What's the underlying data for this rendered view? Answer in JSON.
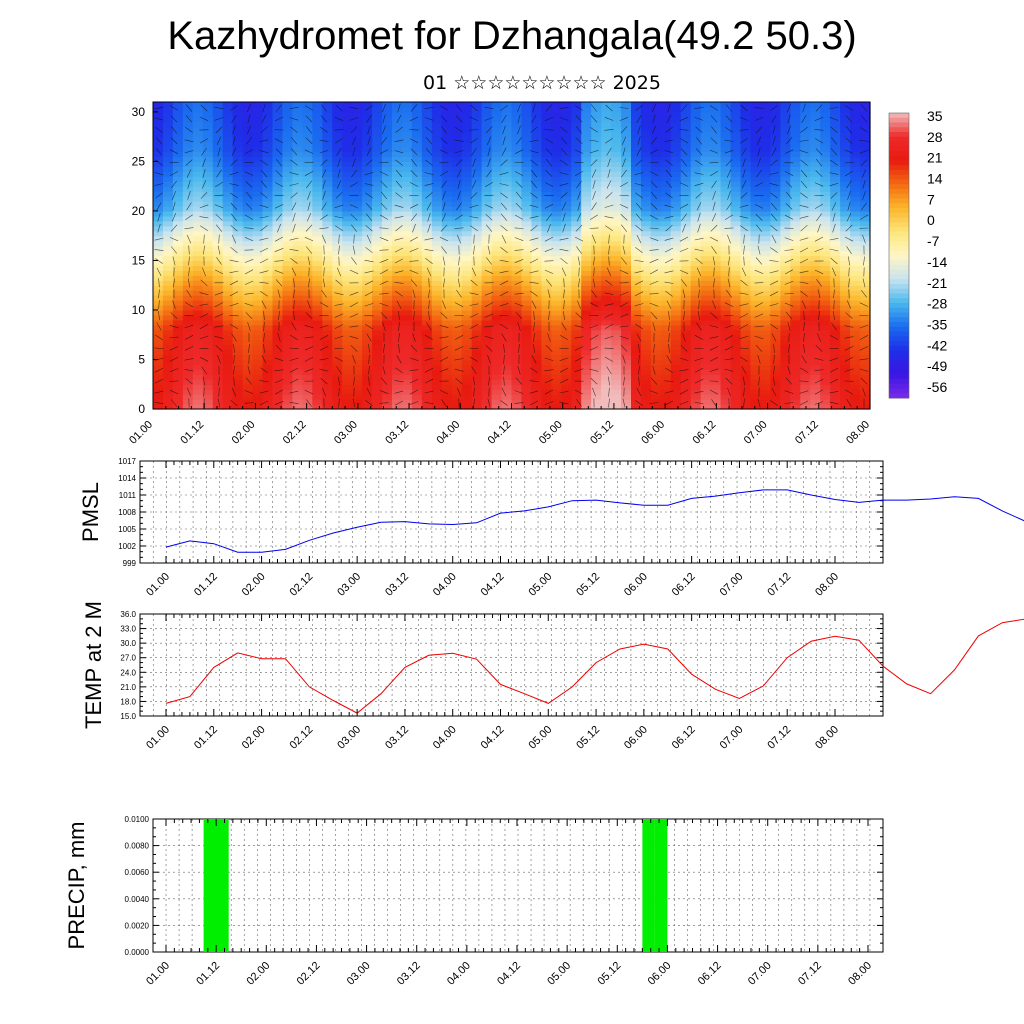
{
  "title": "Kazhydromet for Dzhangala(49.2 50.3)",
  "subtitle": "01 ☆☆☆☆☆☆☆☆☆ 2025",
  "time_ticks": [
    "01.00",
    "01.12",
    "02.00",
    "02.12",
    "03.00",
    "03.12",
    "04.00",
    "04.12",
    "05.00",
    "05.12",
    "06.00",
    "06.12",
    "07.00",
    "07.12",
    "08.00"
  ],
  "colorbar": {
    "labels": [
      "35",
      "28",
      "21",
      "14",
      "7",
      "0",
      "-7",
      "-14",
      "-21",
      "-28",
      "-35",
      "-42",
      "-49",
      "-56"
    ],
    "stops": [
      "#f2bcbc",
      "#ee2a2a",
      "#e81a10",
      "#f36a12",
      "#fcb52a",
      "#fde57a",
      "#fff6c4",
      "#c9e3ef",
      "#49b8ee",
      "#1a6cf0",
      "#1e2ee8",
      "#3a16e4",
      "#7a2ae8"
    ]
  },
  "chart_data": [
    {
      "type": "heatmap",
      "name": "cross-section",
      "y_ticks": [
        "0",
        "5",
        "10",
        "15",
        "20",
        "25",
        "30"
      ],
      "ylim": [
        0,
        31
      ],
      "x_range": [
        "01.00",
        "08.00"
      ],
      "vmin": -60,
      "vmax": 38
    },
    {
      "type": "line",
      "ylabel": "PMSL",
      "y_ticks": [
        "999",
        "1002",
        "1005",
        "1008",
        "1011",
        "1014",
        "1017"
      ],
      "ylim": [
        999,
        1017
      ],
      "x_step_hours": 6,
      "series": [
        {
          "color": "#0000ee",
          "values": [
            1001.8,
            1002.9,
            1002.4,
            1000.9,
            1000.9,
            1001.4,
            1003.0,
            1004.3,
            1005.3,
            1006.2,
            1006.3,
            1005.9,
            1005.8,
            1006.1,
            1007.8,
            1008.2,
            1008.9,
            1010.0,
            1010.1,
            1009.6,
            1009.2,
            1009.2,
            1010.4,
            1010.8,
            1011.4,
            1011.9,
            1011.9,
            1011.0,
            1010.2,
            1009.7,
            1010.1,
            1010.1,
            1010.3,
            1010.7,
            1010.4,
            1008.2,
            1006.3,
            1005.6,
            1006.5,
            1007.4,
            1009.3,
            1011.1,
            1011.6,
            1011.1,
            1010.9,
            1011.1,
            1011.7,
            1012.0,
            1013.2,
            1014.3,
            1014.2,
            1013.6,
            1013.2,
            1013.3,
            1014.0,
            1014.4,
            1015.7
          ]
        }
      ]
    },
    {
      "type": "line",
      "ylabel": "TEMP at 2 M",
      "y_ticks": [
        "15.0",
        "18.0",
        "21.0",
        "24.0",
        "27.0",
        "30.0",
        "33.0",
        "36.0"
      ],
      "ylim": [
        15,
        36
      ],
      "x_step_hours": 6,
      "series": [
        {
          "color": "#ee0000",
          "values": [
            17.6,
            19.0,
            25.0,
            28.0,
            26.8,
            26.8,
            21.0,
            18.2,
            15.6,
            19.6,
            25.0,
            27.5,
            27.9,
            26.7,
            21.5,
            19.6,
            17.6,
            21.0,
            26.0,
            28.8,
            29.8,
            28.8,
            23.6,
            20.5,
            18.6,
            21.2,
            27.0,
            30.4,
            31.4,
            30.6,
            25.3,
            21.6,
            19.6,
            24.5,
            31.5,
            34.2,
            35.0,
            33.6,
            28.8,
            23.8,
            22.8,
            21.6,
            25.7,
            28.5,
            29.6,
            28.6,
            22.9,
            19.3,
            18.2,
            21.5,
            27.2,
            29.4,
            30.3,
            29.4,
            25.0,
            20.8,
            18.1
          ]
        }
      ]
    },
    {
      "type": "bar",
      "ylabel": "PRECIP, mm",
      "y_ticks": [
        "0.0000",
        "0.0020",
        "0.0040",
        "0.0060",
        "0.0080",
        "0.0100"
      ],
      "ylim": [
        0,
        0.01
      ],
      "bar_color": "#00ee00",
      "bars": [
        {
          "start": "01.12",
          "start_offset_hours": -3,
          "hours": 6,
          "value": 0.01
        },
        {
          "start": "05.12",
          "start_offset_hours": 6,
          "hours": 3,
          "value": 0.01
        },
        {
          "start": "06.00",
          "start_offset_hours": -3,
          "hours": 3,
          "value": 0.01
        }
      ]
    }
  ]
}
